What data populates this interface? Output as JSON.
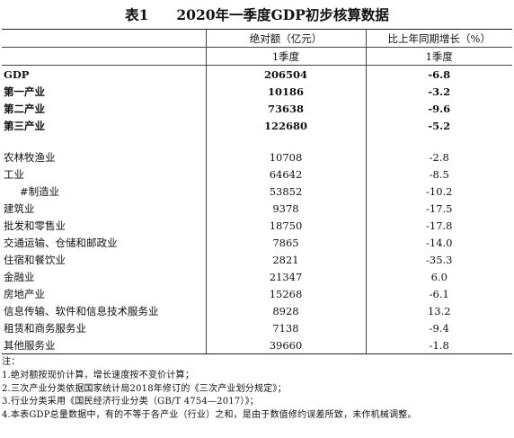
{
  "title": "表1　　2020年一季度GDP初步核算数据",
  "header": {
    "col1": "",
    "col2": "绝对额（亿元）",
    "col3": "比上年同期增长（%）",
    "sub2": "1季度",
    "sub3": "1季度"
  },
  "rows": [
    {
      "name": "GDP",
      "value": "206504",
      "growth": "-6.8"
    },
    {
      "name": "第一产业",
      "value": "10186",
      "growth": "-3.2"
    },
    {
      "name": "第二产业",
      "value": "73638",
      "growth": "-9.6"
    },
    {
      "name": "第三产业",
      "value": "122680",
      "growth": "-5.2"
    },
    {
      "name": "",
      "value": "",
      "growth": ""
    },
    {
      "name": "农林牧渔业",
      "value": "10708",
      "growth": "-2.8"
    },
    {
      "name": "工业",
      "value": "64642",
      "growth": "-8.5"
    },
    {
      "name": "#制造业",
      "value": "53852",
      "growth": "-10.2"
    },
    {
      "name": "建筑业",
      "value": "9378",
      "growth": "-17.5"
    },
    {
      "name": "批发和零售业",
      "value": "18750",
      "growth": "-17.8"
    },
    {
      "name": "交通运输、仓储和邮政业",
      "value": "7865",
      "growth": "-14.0"
    },
    {
      "name": "住宿和餐饮业",
      "value": "2821",
      "growth": "-35.3"
    },
    {
      "name": "金融业",
      "value": "21347",
      "growth": "6.0"
    },
    {
      "name": "房地产业",
      "value": "15268",
      "growth": "-6.1"
    },
    {
      "name": "信息传输、软件和信息技术服务业",
      "value": "8928",
      "growth": "13.2"
    },
    {
      "name": "租赁和商务服务业",
      "value": "7138",
      "growth": "-9.4"
    },
    {
      "name": "其他服务业",
      "value": "39660",
      "growth": "-1.8"
    }
  ],
  "notes": [
    "注：",
    "1.绝对额按现价计算，增长速度按不变价计算；",
    "2.三次产业分类依据国家统计局2018年修订的《三次产业划分规定》；",
    "3.行业分类采用《国民经济行业分类（GB/T 4754—2017）》；",
    "4.本表GDP总量数据中，有的不等于各产业（行业）之和，是由于数值修约误差所致，未作机械调整。"
  ]
}
